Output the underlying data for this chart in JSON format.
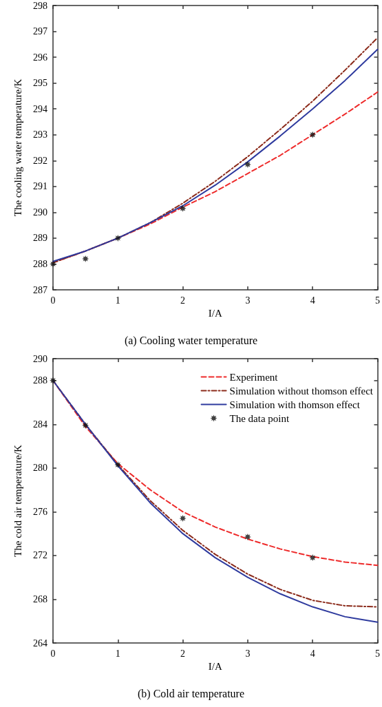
{
  "chart_data": [
    {
      "type": "line",
      "title": "(a) Cooling water temperature",
      "xlabel": "I/A",
      "ylabel": "The cooling water temperature/K",
      "xlim": [
        0,
        5
      ],
      "xticks": [
        0,
        1,
        2,
        3,
        4,
        5
      ],
      "ylim": [
        287,
        298
      ],
      "yticks": [
        287,
        288,
        289,
        290,
        291,
        292,
        293,
        294,
        295,
        296,
        297,
        298
      ],
      "grid": false,
      "legend": false,
      "x": [
        0,
        0.5,
        1,
        1.5,
        2,
        2.5,
        3,
        3.5,
        4,
        4.5,
        5
      ],
      "series": [
        {
          "color": "#ee2a2a",
          "line_style": "dashed",
          "marker": "none",
          "values": [
            288.05,
            288.5,
            289.0,
            289.55,
            290.2,
            290.8,
            291.5,
            292.2,
            293.0,
            293.8,
            294.65
          ]
        },
        {
          "color": "#8b2a1a",
          "line_style": "dashdot",
          "marker": "none",
          "values": [
            288.05,
            288.5,
            289.0,
            289.6,
            290.35,
            291.2,
            292.15,
            293.2,
            294.3,
            295.5,
            296.75
          ]
        },
        {
          "color": "#2e3a9e",
          "line_style": "solid",
          "marker": "none",
          "values": [
            288.1,
            288.5,
            289.0,
            289.6,
            290.25,
            291.05,
            291.95,
            292.95,
            294.0,
            295.1,
            296.3
          ]
        },
        {
          "type": "scatter",
          "color": "#111111",
          "marker": "star",
          "x": [
            0,
            0.5,
            1,
            2,
            3,
            4
          ],
          "values": [
            288.0,
            288.2,
            289.0,
            290.15,
            291.85,
            293.0
          ]
        }
      ]
    },
    {
      "type": "line",
      "title": "(b) Cold air temperature",
      "xlabel": "I/A",
      "ylabel": "The cold air temperature/K",
      "xlim": [
        0,
        5
      ],
      "xticks": [
        0,
        1,
        2,
        3,
        4,
        5
      ],
      "ylim": [
        264,
        290
      ],
      "yticks": [
        264,
        268,
        272,
        276,
        280,
        284,
        288,
        290
      ],
      "grid": false,
      "legend": "top right",
      "x": [
        0,
        0.5,
        1,
        1.5,
        2,
        2.5,
        3,
        3.5,
        4,
        4.5,
        5
      ],
      "series": [
        {
          "name": "Experiment",
          "color": "#ee2a2a",
          "line_style": "dashed",
          "marker": "none",
          "values": [
            288,
            283.8,
            280.4,
            278.0,
            276.0,
            274.6,
            273.5,
            272.6,
            271.9,
            271.4,
            271.1
          ]
        },
        {
          "name": "Simulation without thomson effect",
          "color": "#8b2a1a",
          "line_style": "dashdot",
          "marker": "none",
          "values": [
            288,
            284.0,
            280.3,
            277.0,
            274.3,
            272.1,
            270.3,
            268.9,
            267.9,
            267.4,
            267.3
          ]
        },
        {
          "name": "Simulation with thomson effect",
          "color": "#2e3a9e",
          "line_style": "solid",
          "marker": "none",
          "values": [
            288,
            284.0,
            280.2,
            276.8,
            274.0,
            271.8,
            270.0,
            268.5,
            267.3,
            266.4,
            265.9
          ]
        },
        {
          "name": "The data point",
          "type": "scatter",
          "color": "#111111",
          "marker": "star",
          "x": [
            0,
            0.5,
            1,
            2,
            3,
            4
          ],
          "values": [
            288,
            283.9,
            280.3,
            275.4,
            273.7,
            271.8
          ]
        }
      ]
    }
  ]
}
